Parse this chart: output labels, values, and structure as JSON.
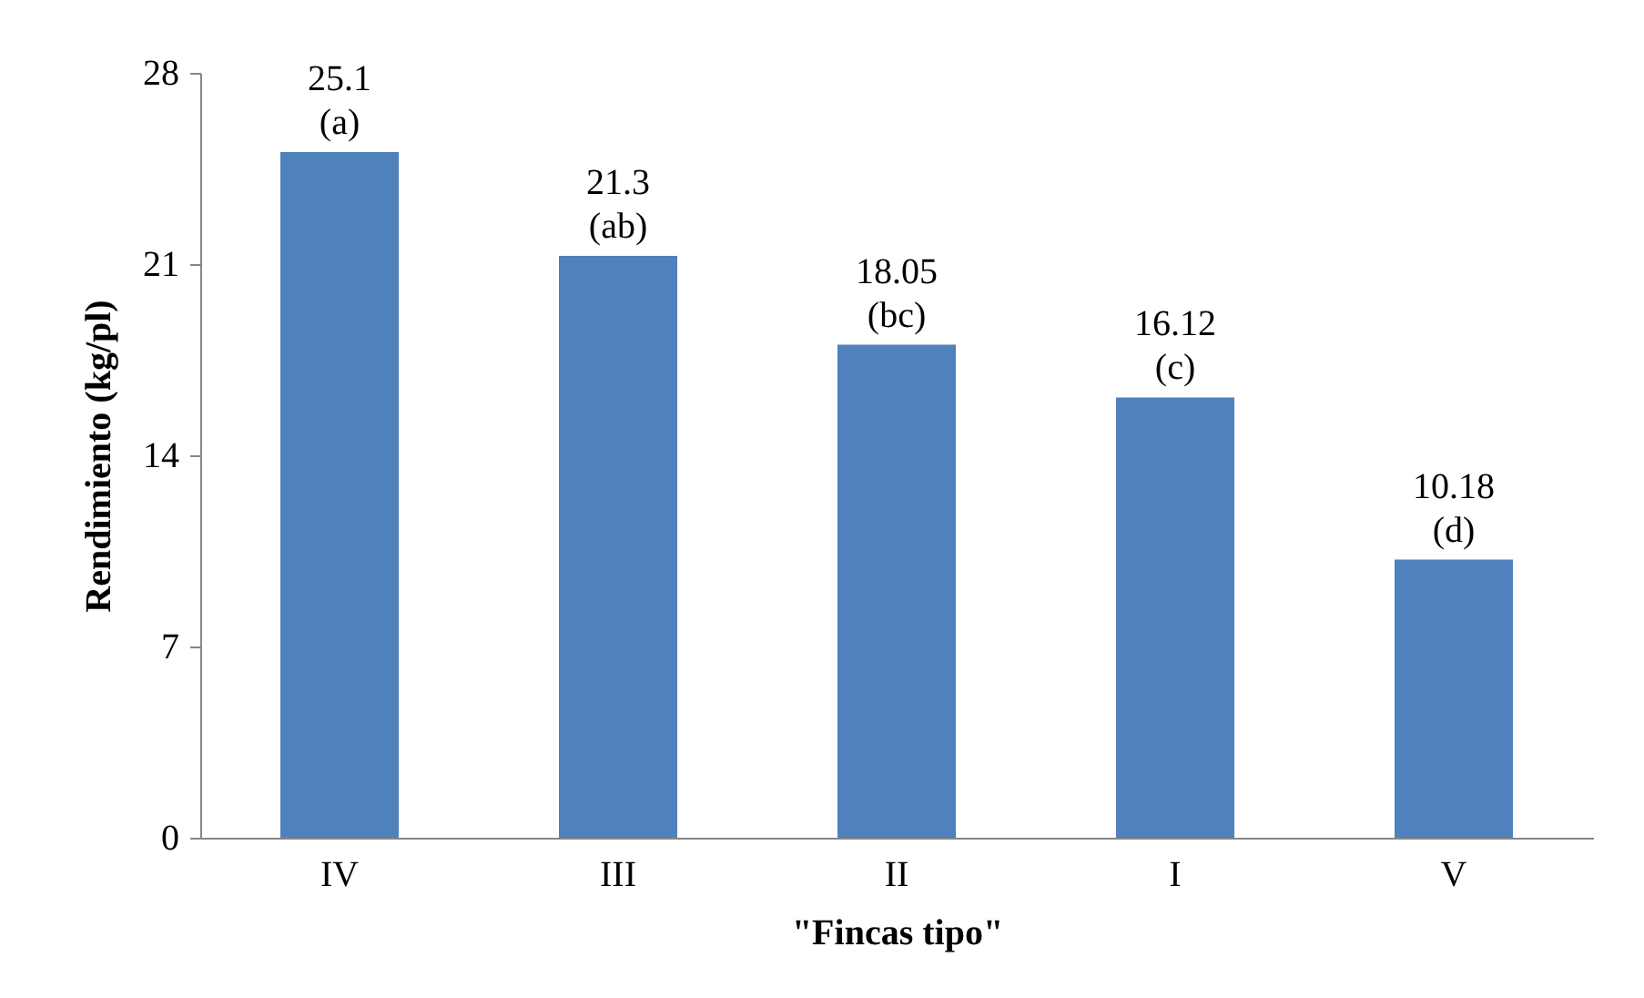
{
  "chart_data": {
    "type": "bar",
    "categories": [
      "IV",
      "III",
      "II",
      "I",
      "V"
    ],
    "values": [
      25.1,
      21.3,
      18.05,
      16.12,
      10.18
    ],
    "value_labels": [
      "25.1\n(a)",
      "21.3\n(ab)",
      "18.05\n(bc)",
      "16.12\n(c)",
      "10.18\n(d)"
    ],
    "color": "#4f81bd",
    "xlabel": "\"Fincas tipo\"",
    "ylabel": "Rendimiento (kg/pl)",
    "ylim": [
      0,
      28
    ],
    "yticks": [
      0,
      7,
      14,
      21,
      28
    ],
    "grid": false
  }
}
